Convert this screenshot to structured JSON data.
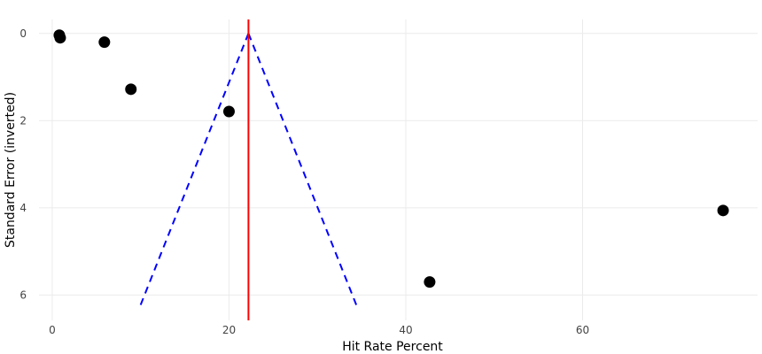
{
  "chart_data": {
    "type": "scatter",
    "title": "",
    "xlabel": "Hit Rate Percent",
    "ylabel": "Standard Error (inverted)",
    "xlim": [
      -1.5,
      79.8
    ],
    "ylim": [
      -0.32,
      6.58
    ],
    "y_inverted": true,
    "grid": true,
    "x_ticks": [
      0,
      20,
      40,
      60
    ],
    "y_ticks": [
      0,
      2,
      4,
      6
    ],
    "points": [
      {
        "x": 0.8,
        "y": 0.04
      },
      {
        "x": 0.9,
        "y": 0.1
      },
      {
        "x": 5.9,
        "y": 0.2
      },
      {
        "x": 8.9,
        "y": 1.28
      },
      {
        "x": 20.0,
        "y": 1.79
      },
      {
        "x": 42.7,
        "y": 5.7
      },
      {
        "x": 75.9,
        "y": 4.06
      }
    ],
    "reference_line": {
      "x": 22.2,
      "color": "#ff0000"
    },
    "funnel": {
      "center": 22.2,
      "multiplier": 1.96,
      "se_max": 6.3,
      "color": "#0000ff",
      "style": "dashed"
    },
    "point_color": "#000000"
  }
}
